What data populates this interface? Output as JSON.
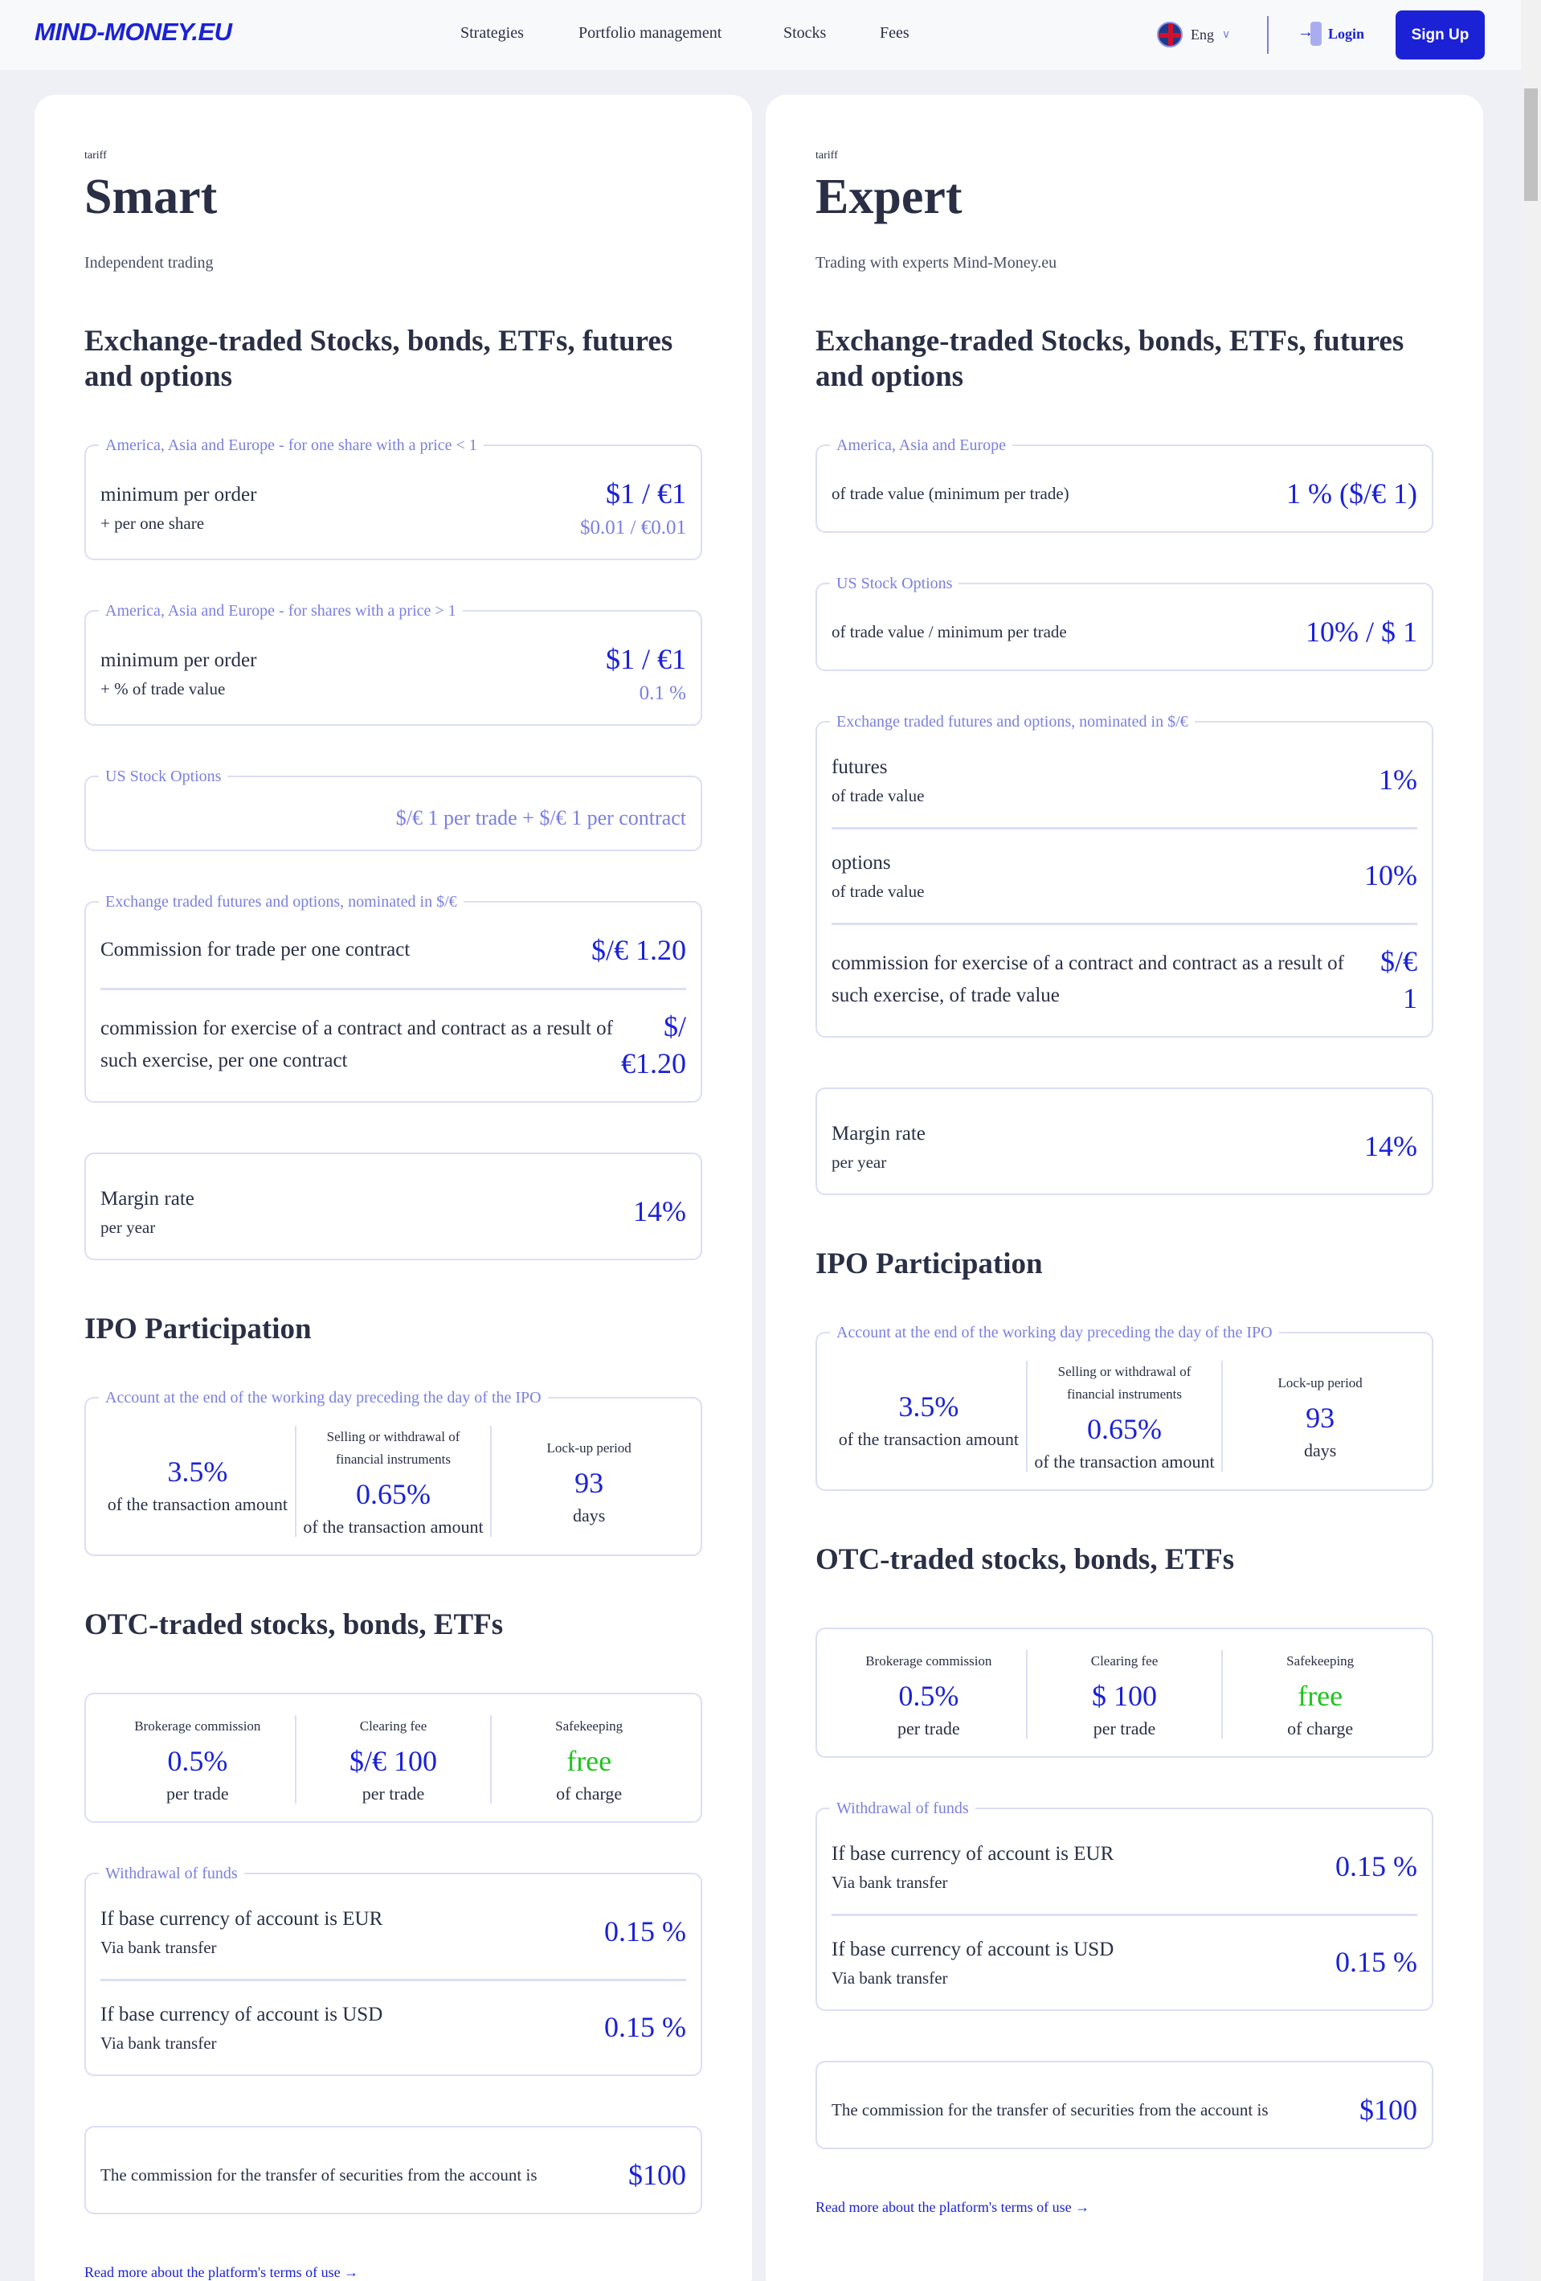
{
  "header": {
    "logo": "MIND-MONEY.EU",
    "nav": [
      "Strategies",
      "Portfolio management",
      "Stocks",
      "Fees"
    ],
    "language": "Eng",
    "login": "Login",
    "signup": "Sign Up"
  },
  "colors": {
    "accent": "#1b22d6",
    "light_accent": "#7b7fe0",
    "free": "#1fc41f"
  },
  "cards": [
    {
      "label": "tariff",
      "title": "Smart",
      "subtitle": "Independent trading",
      "blocks": [
        {
          "type": "heading",
          "text": "Exchange-traded Stocks, bonds, ETFs, futures and options"
        },
        {
          "type": "rows",
          "legend": "America, Asia and Europe - for one share with a price < 1",
          "rows": [
            {
              "text": "minimum per order",
              "sub": "+ per one share",
              "value": "$1 / €1",
              "subvalue": "$0.01 / €0.01"
            }
          ]
        },
        {
          "type": "rows",
          "legend": "America, Asia and Europe - for shares with a price > 1",
          "rows": [
            {
              "text": "minimum per order",
              "sub": "+ % of trade value",
              "value": "$1 / €1",
              "subvalue": "0.1 %"
            }
          ]
        },
        {
          "type": "inline",
          "legend": "US Stock Options",
          "value": "$/€ 1 per trade + $/€ 1 per contract"
        },
        {
          "type": "rows",
          "legend": "Exchange traded futures and options, nominated in $/€",
          "rows": [
            {
              "text": "Commission for trade per one contract",
              "value": "$/€ 1.20"
            },
            {
              "text": "commission for exercise of a contract and contract as a result of such exercise, per one contract",
              "value": "$/ €1.20"
            }
          ]
        },
        {
          "type": "rows",
          "rows": [
            {
              "text": "Margin rate",
              "sub": "per year",
              "value": "14%"
            }
          ]
        },
        {
          "type": "heading",
          "text": "IPO Participation"
        },
        {
          "type": "cols",
          "legend": "Account at the end of the working day preceding the day of the IPO",
          "cols": [
            {
              "label": "",
              "value": "3.5%",
              "sub": "of the transaction amount"
            },
            {
              "label": "Selling or withdrawal of financial instruments",
              "value": "0.65%",
              "sub": "of the transaction amount"
            },
            {
              "label": "Lock-up period",
              "value": "93",
              "sub": "days"
            }
          ]
        },
        {
          "type": "heading",
          "text": "OTC-traded stocks, bonds, ETFs"
        },
        {
          "type": "cols",
          "cols": [
            {
              "label": "Brokerage commission",
              "value": "0.5%",
              "sub": "per trade"
            },
            {
              "label": "Clearing fee",
              "value": "$/€ 100",
              "sub": "per trade"
            },
            {
              "label": "Safekeeping",
              "value": "free",
              "sub": "of charge",
              "green": true
            }
          ]
        },
        {
          "type": "rows",
          "legend": "Withdrawal of funds",
          "rows": [
            {
              "text": "If base currency of account is EUR",
              "sub": "Via bank transfer",
              "value": "0.15 %"
            },
            {
              "text": "If base currency of account is USD",
              "sub": "Via bank transfer",
              "value": "0.15 %"
            }
          ]
        },
        {
          "type": "rows",
          "rows": [
            {
              "text": "The commission for the transfer of securities from the account is",
              "value": "$100",
              "small": true
            }
          ]
        },
        {
          "type": "link",
          "text": "Read more about the platform's terms of use →"
        }
      ]
    },
    {
      "label": "tariff",
      "title": "Expert",
      "subtitle": "Trading with experts Mind-Money.eu",
      "blocks": [
        {
          "type": "heading",
          "text": "Exchange-traded Stocks, bonds, ETFs, futures and options"
        },
        {
          "type": "rows",
          "legend": "America, Asia and Europe",
          "rows": [
            {
              "text": "of trade value (minimum per trade)",
              "value": "1 % ($/€ 1)",
              "small": true
            }
          ]
        },
        {
          "type": "rows",
          "legend": "US Stock Options",
          "rows": [
            {
              "text": "of trade value / minimum per trade",
              "value": "10% / $ 1",
              "small": true
            }
          ]
        },
        {
          "type": "rows",
          "legend": "Exchange traded futures and options, nominated in $/€",
          "rows": [
            {
              "text": "futures",
              "sub": "of trade value",
              "value": "1%"
            },
            {
              "text": "options",
              "sub": "of trade value",
              "value": "10%"
            },
            {
              "text": "commission for exercise of a contract and contract as a result of such exercise, of trade value",
              "value": "$/€ 1"
            }
          ]
        },
        {
          "type": "rows",
          "rows": [
            {
              "text": "Margin rate",
              "sub": "per year",
              "value": "14%"
            }
          ]
        },
        {
          "type": "heading",
          "text": "IPO Participation"
        },
        {
          "type": "cols",
          "legend": "Account at the end of the working day preceding the day of the IPO",
          "cols": [
            {
              "label": "",
              "value": "3.5%",
              "sub": "of the transaction amount"
            },
            {
              "label": "Selling or withdrawal of financial instruments",
              "value": "0.65%",
              "sub": "of the transaction amount"
            },
            {
              "label": "Lock-up period",
              "value": "93",
              "sub": "days"
            }
          ]
        },
        {
          "type": "heading",
          "text": "OTC-traded stocks, bonds, ETFs"
        },
        {
          "type": "cols",
          "cols": [
            {
              "label": "Brokerage commission",
              "value": "0.5%",
              "sub": "per trade"
            },
            {
              "label": "Clearing fee",
              "value": "$ 100",
              "sub": "per trade"
            },
            {
              "label": "Safekeeping",
              "value": "free",
              "sub": "of charge",
              "green": true
            }
          ]
        },
        {
          "type": "rows",
          "legend": "Withdrawal of funds",
          "rows": [
            {
              "text": "If base currency of account is EUR",
              "sub": "Via bank transfer",
              "value": "0.15 %"
            },
            {
              "text": "If base currency of account is USD",
              "sub": "Via bank transfer",
              "value": "0.15 %"
            }
          ]
        },
        {
          "type": "rows",
          "rows": [
            {
              "text": "The commission for the transfer of securities from the account is",
              "value": "$100",
              "small": true
            }
          ]
        },
        {
          "type": "link",
          "text": "Read more about the platform's terms of use →"
        }
      ]
    }
  ]
}
